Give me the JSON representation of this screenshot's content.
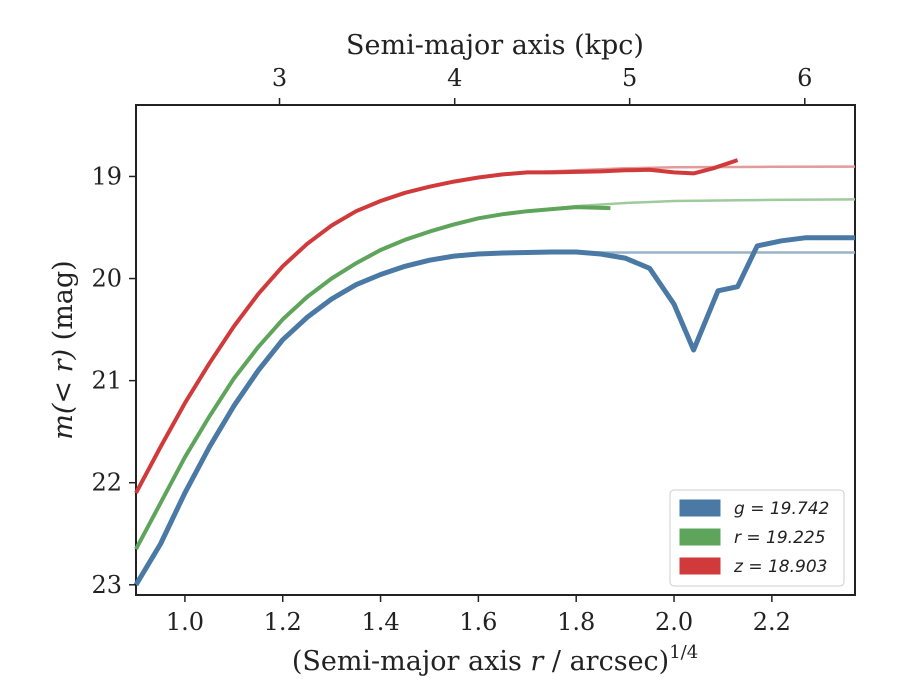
{
  "chart_data": {
    "type": "line",
    "xlabel_main": "(Semi-major axis ",
    "xlabel_var": "r",
    "xlabel_tail": " / arcsec)",
    "xlabel_sup": "1/4",
    "ylabel_pre": "m(",
    "ylabel_mid": "< r",
    "ylabel_post": ") (mag)",
    "top_xlabel": "Semi-major axis (kpc)",
    "xlim": [
      0.9,
      2.37
    ],
    "ylim": [
      23.1,
      18.3
    ],
    "x_ticks": [
      "1.0",
      "1.2",
      "1.4",
      "1.6",
      "1.8",
      "2.0",
      "2.2"
    ],
    "x_tick_values": [
      1.0,
      1.2,
      1.4,
      1.6,
      1.8,
      2.0,
      2.2
    ],
    "y_ticks": [
      "19",
      "20",
      "21",
      "22",
      "23"
    ],
    "y_tick_values": [
      19,
      20,
      21,
      22,
      23
    ],
    "top_ticks": [
      "3",
      "4",
      "5",
      "6"
    ],
    "top_tick_x_positions": [
      1.1934,
      1.5516,
      1.9093,
      2.2673
    ],
    "legend_position": "lower-right",
    "series": [
      {
        "name": "g = 19.742",
        "band": "g",
        "mag": "19.742",
        "color": "#4a79a5",
        "model_color": "#9ab3c8",
        "data": [
          [
            0.9,
            23.0
          ],
          [
            0.95,
            22.6
          ],
          [
            1.0,
            22.1
          ],
          [
            1.05,
            21.65
          ],
          [
            1.1,
            21.25
          ],
          [
            1.15,
            20.9
          ],
          [
            1.2,
            20.6
          ],
          [
            1.25,
            20.38
          ],
          [
            1.3,
            20.2
          ],
          [
            1.35,
            20.06
          ],
          [
            1.4,
            19.96
          ],
          [
            1.45,
            19.88
          ],
          [
            1.5,
            19.82
          ],
          [
            1.55,
            19.78
          ],
          [
            1.6,
            19.76
          ],
          [
            1.65,
            19.75
          ],
          [
            1.7,
            19.745
          ],
          [
            1.75,
            19.74
          ],
          [
            1.8,
            19.74
          ],
          [
            1.85,
            19.76
          ],
          [
            1.9,
            19.8
          ],
          [
            1.95,
            19.9
          ],
          [
            2.0,
            20.25
          ],
          [
            2.04,
            20.7
          ],
          [
            2.09,
            20.12
          ],
          [
            2.13,
            20.08
          ],
          [
            2.17,
            19.68
          ],
          [
            2.22,
            19.63
          ],
          [
            2.27,
            19.6
          ],
          [
            2.37,
            19.6
          ]
        ],
        "model": [
          [
            0.9,
            23.0
          ],
          [
            0.95,
            22.6
          ],
          [
            1.0,
            22.1
          ],
          [
            1.05,
            21.65
          ],
          [
            1.1,
            21.25
          ],
          [
            1.15,
            20.9
          ],
          [
            1.2,
            20.6
          ],
          [
            1.25,
            20.38
          ],
          [
            1.3,
            20.2
          ],
          [
            1.35,
            20.06
          ],
          [
            1.4,
            19.96
          ],
          [
            1.45,
            19.88
          ],
          [
            1.5,
            19.82
          ],
          [
            1.55,
            19.78
          ],
          [
            1.6,
            19.76
          ],
          [
            1.7,
            19.75
          ],
          [
            1.8,
            19.745
          ],
          [
            2.0,
            19.745
          ],
          [
            2.37,
            19.745
          ]
        ]
      },
      {
        "name": "r = 19.225",
        "band": "r",
        "mag": "19.225",
        "color": "#5ea55b",
        "model_color": "#9fcb9c",
        "data": [
          [
            0.9,
            22.65
          ],
          [
            0.95,
            22.2
          ],
          [
            1.0,
            21.75
          ],
          [
            1.05,
            21.35
          ],
          [
            1.1,
            20.98
          ],
          [
            1.15,
            20.67
          ],
          [
            1.2,
            20.4
          ],
          [
            1.25,
            20.18
          ],
          [
            1.3,
            20.0
          ],
          [
            1.35,
            19.85
          ],
          [
            1.4,
            19.72
          ],
          [
            1.45,
            19.62
          ],
          [
            1.5,
            19.54
          ],
          [
            1.55,
            19.47
          ],
          [
            1.6,
            19.41
          ],
          [
            1.65,
            19.37
          ],
          [
            1.7,
            19.34
          ],
          [
            1.75,
            19.32
          ],
          [
            1.8,
            19.3
          ],
          [
            1.87,
            19.31
          ]
        ],
        "model": [
          [
            0.9,
            22.65
          ],
          [
            0.95,
            22.2
          ],
          [
            1.0,
            21.75
          ],
          [
            1.05,
            21.35
          ],
          [
            1.1,
            20.98
          ],
          [
            1.15,
            20.67
          ],
          [
            1.2,
            20.4
          ],
          [
            1.25,
            20.18
          ],
          [
            1.3,
            20.0
          ],
          [
            1.35,
            19.85
          ],
          [
            1.4,
            19.72
          ],
          [
            1.45,
            19.62
          ],
          [
            1.5,
            19.54
          ],
          [
            1.55,
            19.47
          ],
          [
            1.6,
            19.41
          ],
          [
            1.7,
            19.34
          ],
          [
            1.8,
            19.29
          ],
          [
            1.9,
            19.26
          ],
          [
            2.0,
            19.24
          ],
          [
            2.2,
            19.23
          ],
          [
            2.37,
            19.225
          ]
        ]
      },
      {
        "name": "z = 18.903",
        "band": "z",
        "mag": "18.903",
        "color": "#d13a3a",
        "model_color": "#e39a9a",
        "data": [
          [
            0.9,
            22.1
          ],
          [
            0.95,
            21.65
          ],
          [
            1.0,
            21.22
          ],
          [
            1.05,
            20.83
          ],
          [
            1.1,
            20.47
          ],
          [
            1.15,
            20.15
          ],
          [
            1.2,
            19.88
          ],
          [
            1.25,
            19.66
          ],
          [
            1.3,
            19.48
          ],
          [
            1.35,
            19.34
          ],
          [
            1.4,
            19.24
          ],
          [
            1.45,
            19.16
          ],
          [
            1.5,
            19.1
          ],
          [
            1.55,
            19.05
          ],
          [
            1.6,
            19.01
          ],
          [
            1.65,
            18.98
          ],
          [
            1.7,
            18.96
          ],
          [
            1.75,
            18.96
          ],
          [
            1.8,
            18.955
          ],
          [
            1.85,
            18.95
          ],
          [
            1.9,
            18.94
          ],
          [
            1.95,
            18.935
          ],
          [
            2.0,
            18.96
          ],
          [
            2.04,
            18.97
          ],
          [
            2.08,
            18.92
          ],
          [
            2.13,
            18.84
          ]
        ],
        "model": [
          [
            0.9,
            22.1
          ],
          [
            0.95,
            21.65
          ],
          [
            1.0,
            21.22
          ],
          [
            1.05,
            20.83
          ],
          [
            1.1,
            20.47
          ],
          [
            1.15,
            20.15
          ],
          [
            1.2,
            19.88
          ],
          [
            1.25,
            19.66
          ],
          [
            1.3,
            19.48
          ],
          [
            1.35,
            19.34
          ],
          [
            1.4,
            19.24
          ],
          [
            1.45,
            19.16
          ],
          [
            1.5,
            19.1
          ],
          [
            1.55,
            19.05
          ],
          [
            1.6,
            19.01
          ],
          [
            1.7,
            18.96
          ],
          [
            1.8,
            18.94
          ],
          [
            1.9,
            18.92
          ],
          [
            2.0,
            18.91
          ],
          [
            2.2,
            18.905
          ],
          [
            2.37,
            18.903
          ]
        ]
      }
    ]
  }
}
